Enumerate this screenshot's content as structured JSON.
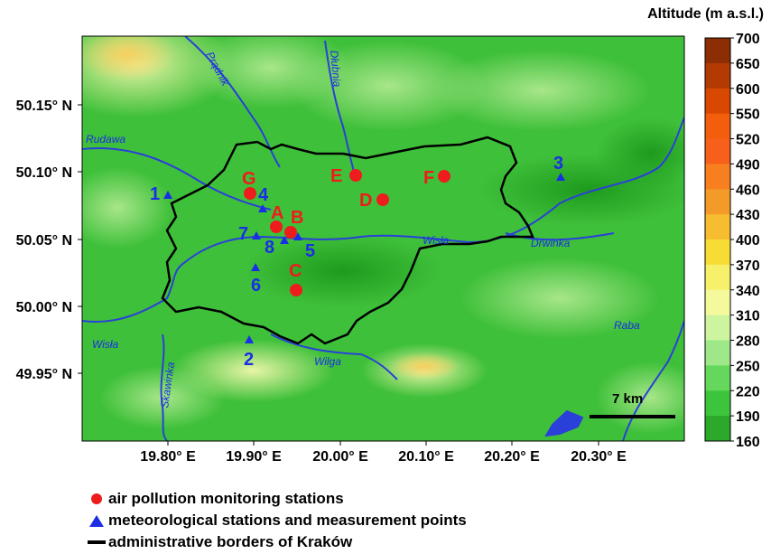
{
  "colorbar": {
    "title": "Altitude (m a.s.l.)",
    "ticks": [
      700,
      650,
      600,
      550,
      520,
      490,
      460,
      430,
      400,
      370,
      340,
      310,
      280,
      250,
      220,
      190,
      160
    ],
    "colors": [
      "#8c2d04",
      "#b33a03",
      "#d84801",
      "#f25e0c",
      "#f6601a",
      "#f77f1f",
      "#f39a28",
      "#f6bd31",
      "#f8dc35",
      "#f7f06a",
      "#f4fa9b",
      "#cdf5a0",
      "#9ee88a",
      "#66d75d",
      "#3cc53c",
      "#2ca82a"
    ]
  },
  "map": {
    "x_ticks": [
      "19.80° E",
      "19.90° E",
      "20.00° E",
      "20.10° E",
      "20.20° E",
      "20.30° E"
    ],
    "y_ticks": [
      "50.15° N",
      "50.10° N",
      "50.05° N",
      "50.00° N",
      "49.95° N"
    ],
    "rivers": [
      "Prądnik",
      "Dłubnia",
      "Rudawa",
      "Wisła",
      "Drwinka",
      "Raba",
      "Wisła",
      "Skawinka",
      "Wilga",
      "Wisła"
    ],
    "scale_bar": "7 km"
  },
  "air_stations": [
    "G",
    "A",
    "B",
    "C",
    "E",
    "D",
    "F"
  ],
  "meteo_stations": [
    "1",
    "4",
    "7",
    "8",
    "5",
    "6",
    "2",
    "3"
  ],
  "legend": {
    "air": "air pollution monitoring stations",
    "meteo": "meteorological stations and measurement points",
    "border": "administrative borders of Kraków"
  },
  "colors": {
    "air_station": "#ee1c1c",
    "meteo_station": "#1a2ee6",
    "river": "#2a40d8",
    "border": "#000000"
  }
}
